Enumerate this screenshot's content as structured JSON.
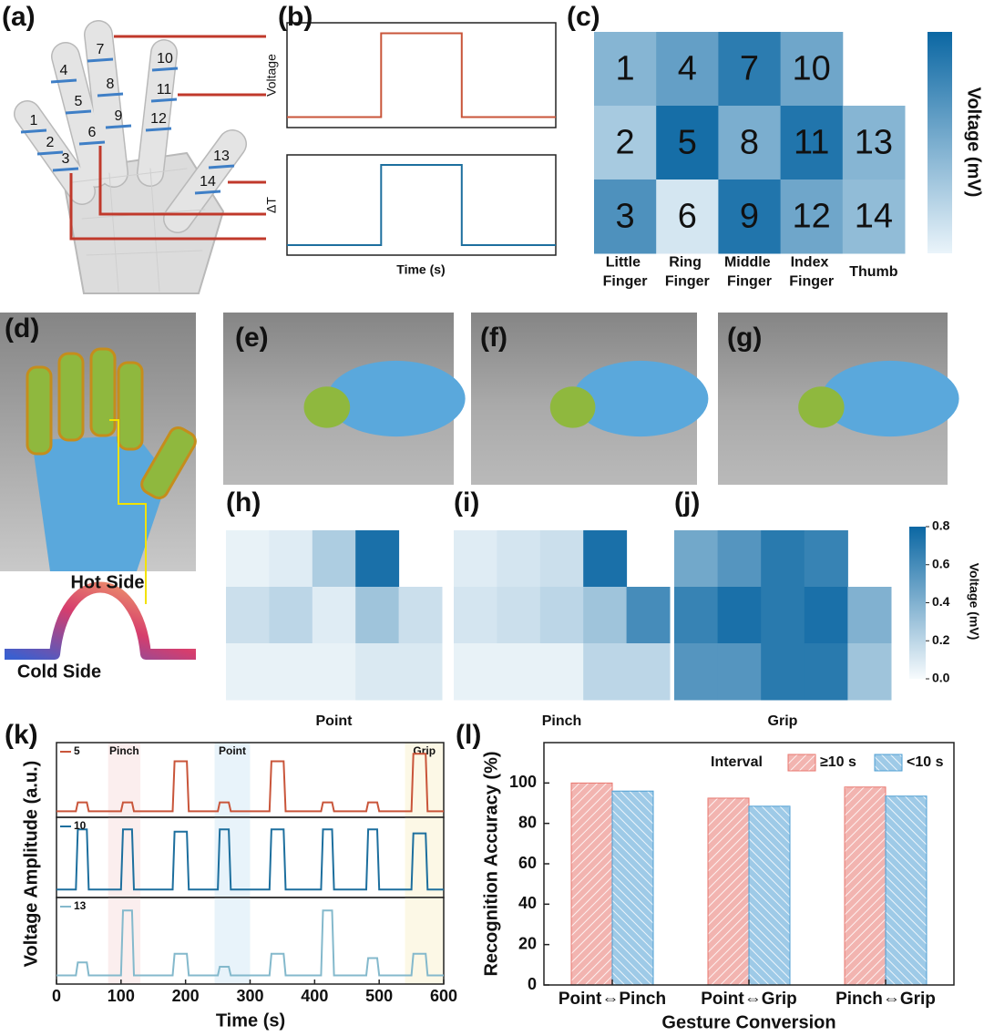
{
  "chart_data": [
    {
      "type": "diagram",
      "panel": "(a)",
      "labels": [
        1,
        2,
        3,
        4,
        5,
        6,
        7,
        8,
        9,
        10,
        11,
        12,
        13,
        14
      ]
    },
    {
      "type": "line",
      "panel": "(b)",
      "xlabel": "Time (s)",
      "xlim": [
        0,
        10
      ],
      "ylim": [
        0,
        1
      ],
      "x": [
        0,
        3.5,
        3.5,
        6.5,
        6.5,
        10
      ],
      "subplots": [
        {
          "ylabel": "Voltage",
          "series": [
            {
              "color": "#c9553a",
              "values": [
                0.1,
                0.1,
                0.9,
                0.9,
                0.1,
                0.1
              ]
            }
          ]
        },
        {
          "ylabel": "ΔT",
          "series": [
            {
              "color": "#1d6f9e",
              "values": [
                0.1,
                0.1,
                0.9,
                0.9,
                0.1,
                0.1
              ]
            }
          ]
        }
      ]
    },
    {
      "type": "heatmap",
      "panel": "(c)",
      "clim": [
        0,
        1
      ],
      "colors": [
        "#eaf4fa",
        "#0b67a3"
      ],
      "colorbar_label": "Voltage (mV)",
      "categories": [
        "Little Finger",
        "Ring Finger",
        "Middle Finger",
        "Index Finger",
        "Thumb"
      ],
      "maps": [
        {
          "cell_labels": [
            [
              1,
              4,
              7,
              10,
              null
            ],
            [
              2,
              5,
              8,
              11,
              13
            ],
            [
              3,
              6,
              9,
              12,
              14
            ]
          ],
          "values": [
            [
              0.45,
              0.6,
              0.85,
              0.55,
              null
            ],
            [
              0.3,
              0.95,
              0.5,
              0.9,
              0.45
            ],
            [
              0.7,
              0.1,
              0.9,
              0.55,
              0.4
            ]
          ]
        }
      ]
    },
    {
      "type": "image",
      "panel": "(d)",
      "annotations": [
        "Hot Side",
        "Cold Side"
      ]
    },
    {
      "type": "image",
      "panel": "(e)"
    },
    {
      "type": "image",
      "panel": "(f)"
    },
    {
      "type": "image",
      "panel": "(g)"
    },
    {
      "type": "heatmap",
      "panel": [
        "(h)",
        "(i)",
        "(j)"
      ],
      "clim": [
        0,
        0.8
      ],
      "colors": [
        "#f7fbfd",
        "#0b67a3"
      ],
      "colorbar_label": "Voltage (mV)",
      "cticks": [
        {
          "value": 0,
          "label": "0.0"
        },
        0.2,
        0.4,
        0.6,
        0.8
      ],
      "maps": [
        {
          "title": "Point",
          "values": [
            [
              0.05,
              0.08,
              0.25,
              0.75,
              null
            ],
            [
              0.15,
              0.2,
              0.08,
              0.3,
              0.15
            ],
            [
              0.05,
              0.05,
              0.05,
              0.1,
              0.1
            ]
          ]
        },
        {
          "title": "Pinch",
          "values": [
            [
              0.08,
              0.12,
              0.15,
              0.75,
              null
            ],
            [
              0.12,
              0.15,
              0.2,
              0.3,
              0.6
            ],
            [
              0.05,
              0.05,
              0.05,
              0.2,
              0.2
            ]
          ]
        },
        {
          "title": "Grip",
          "values": [
            [
              0.45,
              0.55,
              0.7,
              0.65,
              null
            ],
            [
              0.65,
              0.75,
              0.7,
              0.75,
              0.4
            ],
            [
              0.55,
              0.55,
              0.7,
              0.7,
              0.3
            ]
          ]
        }
      ]
    },
    {
      "type": "line",
      "panel": "(k)",
      "xlabel": "Time (s)",
      "ylabel": "Voltage Amplitude (a.u.)",
      "xlim": [
        0,
        600
      ],
      "xticks": [
        0,
        100,
        200,
        300,
        400,
        500,
        600
      ],
      "ylim": [
        0,
        1
      ],
      "x": [
        0,
        30,
        33,
        47,
        50,
        100,
        103,
        117,
        120,
        180,
        183,
        202,
        205,
        250,
        253,
        267,
        270,
        330,
        333,
        352,
        355,
        410,
        413,
        427,
        430,
        480,
        483,
        497,
        500,
        550,
        553,
        572,
        575,
        600
      ],
      "annotations": [
        {
          "text": "Pinch",
          "x": [
            80,
            130
          ],
          "color": "#fbeeee"
        },
        {
          "text": "Point",
          "x": [
            245,
            300
          ],
          "color": "#e8f3fa"
        },
        {
          "text": "Grip",
          "x": [
            540,
            600
          ],
          "color": "#fcf8e6"
        }
      ],
      "subplots": [
        {
          "series": [
            {
              "name": "5",
              "color": "#c9553a",
              "values": [
                0.08,
                0.08,
                0.2,
                0.2,
                0.08,
                0.08,
                0.2,
                0.2,
                0.08,
                0.08,
                0.75,
                0.75,
                0.08,
                0.08,
                0.2,
                0.2,
                0.08,
                0.08,
                0.75,
                0.75,
                0.08,
                0.08,
                0.2,
                0.2,
                0.08,
                0.08,
                0.2,
                0.2,
                0.08,
                0.08,
                0.85,
                0.85,
                0.08,
                0.08
              ]
            }
          ]
        },
        {
          "series": [
            {
              "name": "10",
              "color": "#1d6f9e",
              "values": [
                0.1,
                0.1,
                0.85,
                0.85,
                0.1,
                0.1,
                0.85,
                0.85,
                0.1,
                0.1,
                0.82,
                0.82,
                0.1,
                0.1,
                0.85,
                0.85,
                0.1,
                0.1,
                0.85,
                0.85,
                0.1,
                0.1,
                0.85,
                0.85,
                0.1,
                0.1,
                0.85,
                0.85,
                0.1,
                0.1,
                0.8,
                0.8,
                0.1,
                0.1
              ]
            }
          ]
        },
        {
          "series": [
            {
              "name": "13",
              "color": "#84b9cc",
              "values": [
                0.1,
                0.1,
                0.25,
                0.25,
                0.1,
                0.1,
                0.85,
                0.85,
                0.1,
                0.1,
                0.35,
                0.35,
                0.1,
                0.1,
                0.2,
                0.2,
                0.1,
                0.1,
                0.35,
                0.35,
                0.1,
                0.1,
                0.85,
                0.85,
                0.1,
                0.1,
                0.3,
                0.3,
                0.1,
                0.1,
                0.35,
                0.35,
                0.1,
                0.1
              ]
            }
          ]
        }
      ]
    },
    {
      "type": "bar",
      "panel": "(l)",
      "xlabel": "Gesture Conversion",
      "ylabel": "Recognition Accuracy (%)",
      "categories": [
        "Point⇔Pinch",
        "Point⇔Grip",
        "Pinch⇔Grip"
      ],
      "ylim": [
        0,
        120
      ],
      "yticks": [
        0,
        20,
        40,
        60,
        80,
        100
      ],
      "legend_title": "Interval",
      "legend": "top right",
      "series": [
        {
          "name": "≥10 s",
          "color": "#e8776f",
          "values": [
            100,
            92.5,
            98
          ]
        },
        {
          "name": "<10 s",
          "color": "#4f9fd3",
          "values": [
            96,
            88.5,
            93.5
          ]
        }
      ]
    }
  ]
}
